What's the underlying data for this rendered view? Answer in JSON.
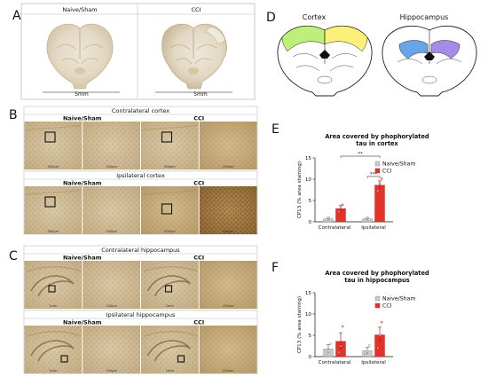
{
  "panel_a": {
    "label": "A",
    "groups": [
      "Naive/Sham",
      "CCI"
    ],
    "scale_label": "5mm"
  },
  "panel_b": {
    "label": "B",
    "sections": [
      {
        "title": "Contralateral cortex",
        "cols": [
          "Naive/Sham",
          "CCI"
        ],
        "scales": [
          "500µm",
          "100µm",
          "500µm",
          "100µm"
        ]
      },
      {
        "title": "Ipsilateral cortex",
        "cols": [
          "Naive/Sham",
          "CCI"
        ],
        "scales": [
          "500µm",
          "100µm",
          "500µm",
          "100µm"
        ]
      }
    ]
  },
  "panel_c": {
    "label": "C",
    "sections": [
      {
        "title": "Contralateral hippocampus",
        "cols": [
          "Naive/Sham",
          "CCI"
        ],
        "scales": [
          "1mm",
          "100µm",
          "1mm",
          "100µm"
        ]
      },
      {
        "title": "Ipsilateral hippocampus",
        "cols": [
          "Naive/Sham",
          "CCI"
        ],
        "scales": [
          "1mm",
          "100µm",
          "1mm",
          "100µm"
        ]
      }
    ]
  },
  "panel_d": {
    "label": "D",
    "regions": [
      "Cortex",
      "Hippocampus"
    ]
  },
  "panel_e": {
    "label": "E"
  },
  "panel_f": {
    "label": "F"
  },
  "colors": {
    "sham": "#c9c9c9",
    "cci": "#e2332b",
    "cortex_left": "#bdf07a",
    "cortex_right": "#fbf07a",
    "hippo_left": "#6aa4e8",
    "hippo_right": "#a78ae8"
  },
  "chart_data": [
    {
      "type": "bar",
      "title": "Area covered by phophorylated tau in cortex",
      "ylabel": "CP13 (% area staining)",
      "categories": [
        "Contralateral",
        "Ipsilateral"
      ],
      "ylim": [
        0,
        15
      ],
      "yticks": [
        "0",
        "5",
        "10",
        "15"
      ],
      "series": [
        {
          "name": "Naive/Sham",
          "values": [
            0.7,
            0.7
          ],
          "errors": [
            0.3,
            0.3
          ],
          "points": [
            [
              0.5,
              1.0,
              0.6
            ],
            [
              0.6,
              1.0,
              0.5
            ]
          ]
        },
        {
          "name": "CCI",
          "values": [
            3.1,
            8.6
          ],
          "errors": [
            0.7,
            1.0
          ],
          "points": [
            [
              2.4,
              3.7,
              4.0
            ],
            [
              7.3,
              9.0,
              10.1
            ]
          ]
        }
      ],
      "significance": [
        {
          "label": "**",
          "from": "Contralateral-CCI",
          "to": "Ipsilateral-CCI"
        },
        {
          "label": "***",
          "from": "Ipsilateral-Naive/Sham",
          "to": "Ipsilateral-CCI"
        }
      ]
    },
    {
      "type": "bar",
      "title": "Area covered by phophorylated tau in hippocampus",
      "ylabel": "CP13 (% area staining)",
      "categories": [
        "Contralateral",
        "Ipsilateral"
      ],
      "ylim": [
        0,
        15
      ],
      "yticks": [
        "0",
        "5",
        "10",
        "15"
      ],
      "series": [
        {
          "name": "Naive/Sham",
          "values": [
            1.8,
            1.4
          ],
          "errors": [
            1.0,
            0.8
          ],
          "points": [
            [
              0.4,
              1.3,
              3.0
            ],
            [
              0.3,
              1.2,
              2.6
            ]
          ]
        },
        {
          "name": "CCI",
          "values": [
            3.6,
            5.1
          ],
          "errors": [
            2.0,
            1.8
          ],
          "points": [
            [
              1.0,
              2.5,
              7.1
            ],
            [
              2.1,
              5.0,
              8.1
            ]
          ]
        }
      ],
      "significance": []
    }
  ]
}
